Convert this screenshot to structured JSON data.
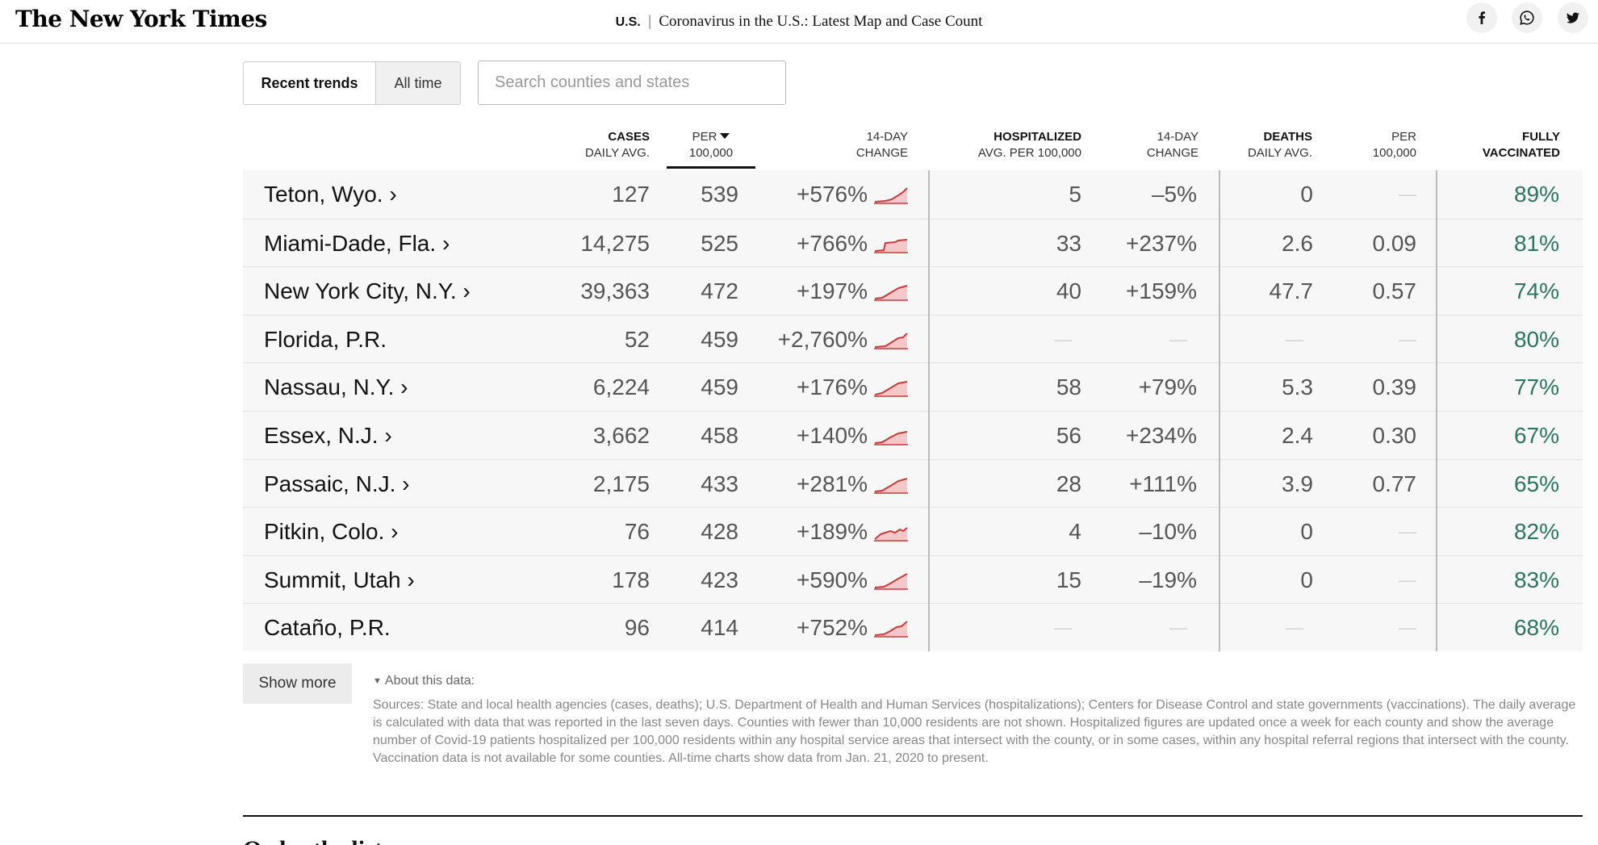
{
  "header": {
    "logo": "The New York Times",
    "section": "U.S.",
    "separator": "|",
    "headline": "Coronavirus in the U.S.: Latest Map and Case Count"
  },
  "share_icons": [
    "facebook-icon",
    "whatsapp-icon",
    "twitter-icon"
  ],
  "toggle": {
    "active": "Recent trends",
    "inactive": "All time"
  },
  "search": {
    "placeholder": "Search counties and states",
    "value": ""
  },
  "columns": {
    "cases_1": "CASES",
    "cases_2": "DAILY AVG.",
    "per_1": "PER",
    "per_2": "100,000",
    "change_1": "14-DAY",
    "change_2": "CHANGE",
    "hosp_1": "HOSPITALIZED",
    "hosp_2": "AVG. PER 100,000",
    "hchange_1": "14-DAY",
    "hchange_2": "CHANGE",
    "deaths_1": "DEATHS",
    "deaths_2": "DAILY AVG.",
    "dper_1": "PER",
    "dper_2": "100,000",
    "vax_1": "FULLY",
    "vax_2": "VACCINATED"
  },
  "sort_column": "per_100k",
  "colors": {
    "accent_red": "#c93b3b",
    "spark_fill": "#f4c8c8",
    "vaccinated_green": "#2d7560",
    "row_bg": "#f7f7f7"
  },
  "rows": [
    {
      "name": "Teton, Wyo. ›",
      "cases": "127",
      "per": "539",
      "change": "+576%",
      "hosp": "5",
      "hchange": "–5%",
      "deaths": "0",
      "dper": "—",
      "vax": "89%"
    },
    {
      "name": "Miami-Dade, Fla. ›",
      "cases": "14,275",
      "per": "525",
      "change": "+766%",
      "hosp": "33",
      "hchange": "+237%",
      "deaths": "2.6",
      "dper": "0.09",
      "vax": "81%"
    },
    {
      "name": "New York City, N.Y. ›",
      "cases": "39,363",
      "per": "472",
      "change": "+197%",
      "hosp": "40",
      "hchange": "+159%",
      "deaths": "47.7",
      "dper": "0.57",
      "vax": "74%"
    },
    {
      "name": "Florida, P.R.",
      "cases": "52",
      "per": "459",
      "change": "+2,760%",
      "hosp": "—",
      "hchange": "—",
      "deaths": "—",
      "dper": "—",
      "vax": "80%"
    },
    {
      "name": "Nassau, N.Y. ›",
      "cases": "6,224",
      "per": "459",
      "change": "+176%",
      "hosp": "58",
      "hchange": "+79%",
      "deaths": "5.3",
      "dper": "0.39",
      "vax": "77%"
    },
    {
      "name": "Essex, N.J. ›",
      "cases": "3,662",
      "per": "458",
      "change": "+140%",
      "hosp": "56",
      "hchange": "+234%",
      "deaths": "2.4",
      "dper": "0.30",
      "vax": "67%"
    },
    {
      "name": "Passaic, N.J. ›",
      "cases": "2,175",
      "per": "433",
      "change": "+281%",
      "hosp": "28",
      "hchange": "+111%",
      "deaths": "3.9",
      "dper": "0.77",
      "vax": "65%"
    },
    {
      "name": "Pitkin, Colo. ›",
      "cases": "76",
      "per": "428",
      "change": "+189%",
      "hosp": "4",
      "hchange": "–10%",
      "deaths": "0",
      "dper": "—",
      "vax": "82%"
    },
    {
      "name": "Summit, Utah ›",
      "cases": "178",
      "per": "423",
      "change": "+590%",
      "hosp": "15",
      "hchange": "–19%",
      "deaths": "0",
      "dper": "—",
      "vax": "83%"
    },
    {
      "name": "Cataño, P.R.",
      "cases": "96",
      "per": "414",
      "change": "+752%",
      "hosp": "—",
      "hchange": "—",
      "deaths": "—",
      "dper": "—",
      "vax": "68%"
    }
  ],
  "footer": {
    "show_more": "Show more",
    "about_label": "About this data:",
    "sources": "Sources: State and local health agencies (cases, deaths); U.S. Department of Health and Human Services (hospitalizations); Centers for Disease Control and state governments (vaccinations). The daily average is calculated with data that was reported in the last seven days. Counties with fewer than 10,000 residents are not shown. Hospitalized figures are updated once a week for each county and show the average number of Covid-19 patients hospitalized per 100,000 residents within any hospital service areas that intersect with the county, or in some cases, within any hospital referral regions that intersect with the county. Vaccination data is not available for some counties. All-time charts show data from Jan. 21, 2020 to present."
  },
  "next_section_heading": "Order the list"
}
